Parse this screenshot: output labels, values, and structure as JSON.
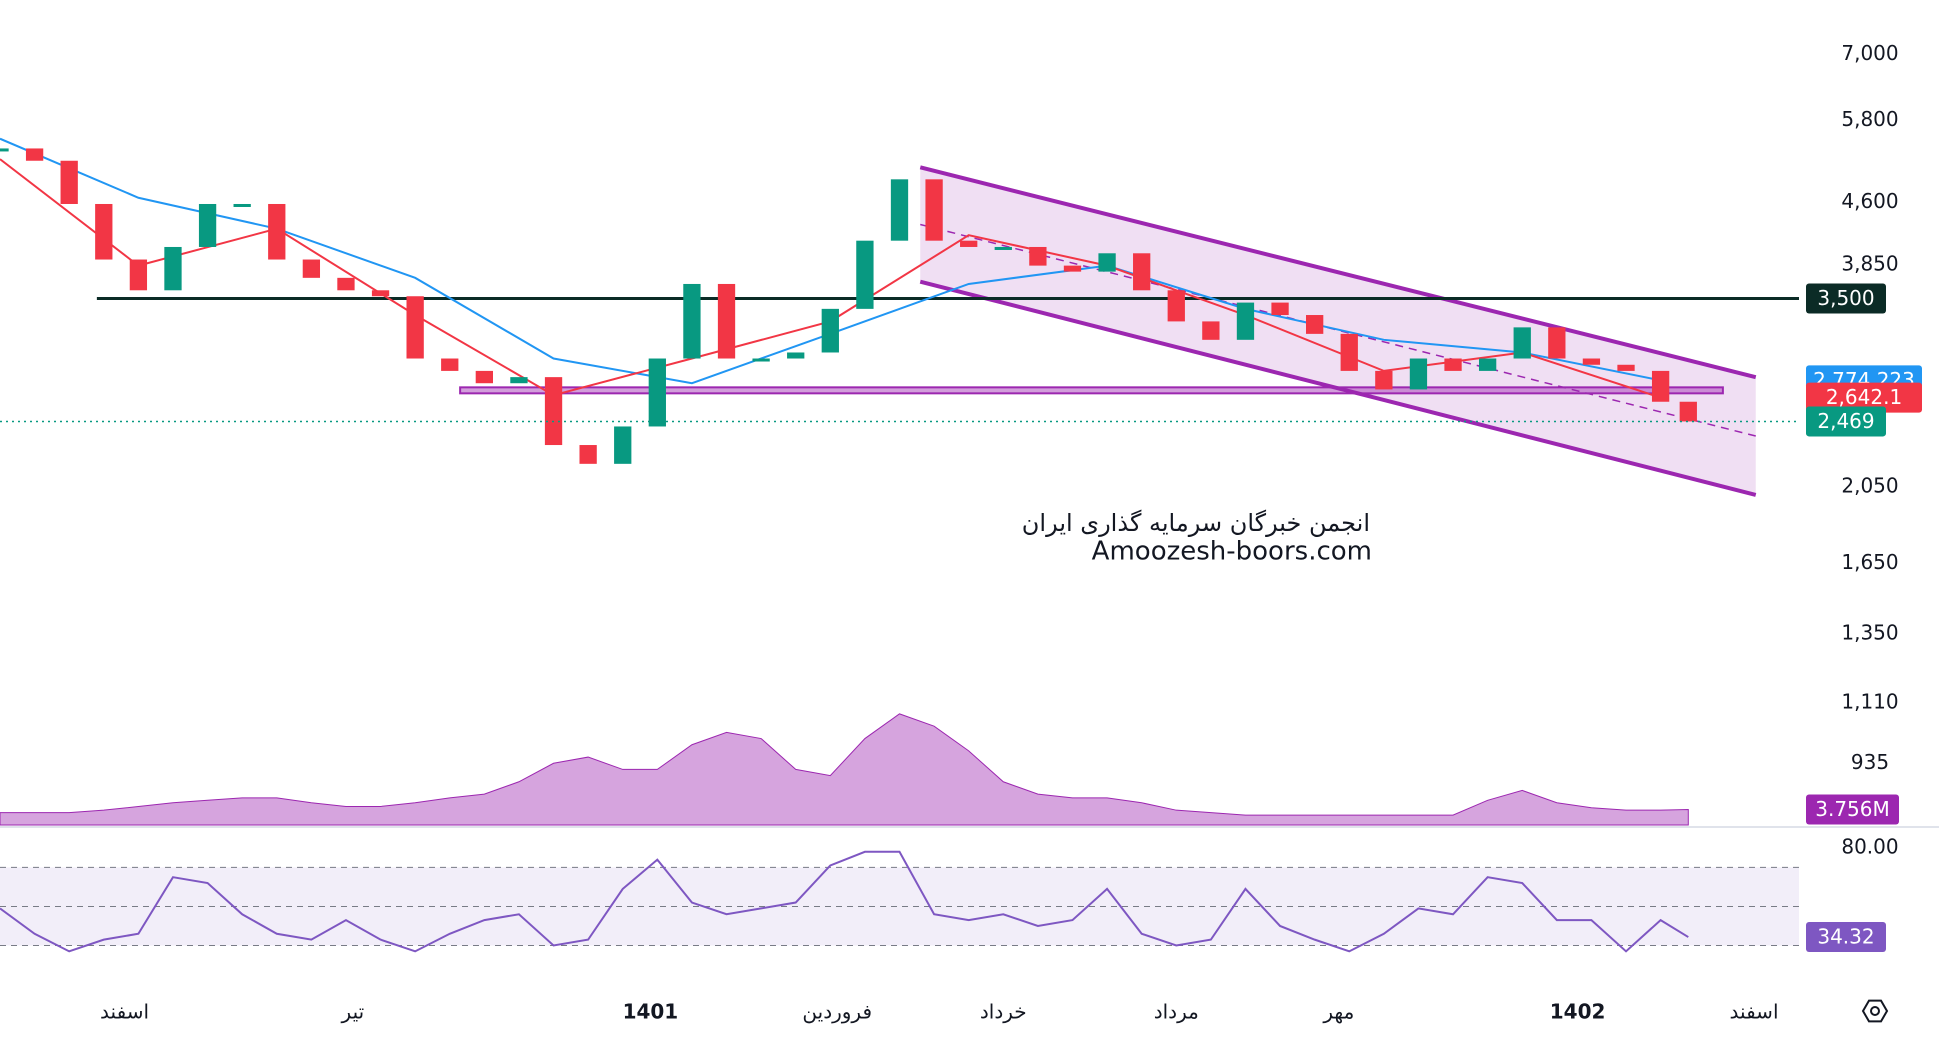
{
  "chart_data": {
    "type": "candlestick",
    "log_scale": true,
    "color_up": "#089981",
    "color_down": "#f23645",
    "xlim": [
      0,
      52
    ],
    "xticks": [
      {
        "value": 3.6,
        "label": "اسفند"
      },
      {
        "value": 10.2,
        "label": "تیر"
      },
      {
        "value": 18.8,
        "label": "1401"
      },
      {
        "value": 24.2,
        "label": "فروردین"
      },
      {
        "value": 29.0,
        "label": "خرداد"
      },
      {
        "value": 34.0,
        "label": "مرداد"
      },
      {
        "value": 38.7,
        "label": "مهر"
      },
      {
        "value": 45.6,
        "label": "1402"
      },
      {
        "value": 50.7,
        "label": "اسفند"
      }
    ],
    "ylim": [
      785,
      8170
    ],
    "yticks": [
      {
        "value": 7000,
        "label": "7,000"
      },
      {
        "value": 5800,
        "label": "5,800"
      },
      {
        "value": 4600,
        "label": "4,600"
      },
      {
        "value": 3850,
        "label": "3,850"
      },
      {
        "value": 2050,
        "label": "2,050"
      },
      {
        "value": 1650,
        "label": "1,650"
      },
      {
        "value": 1350,
        "label": "1,350"
      },
      {
        "value": 1110,
        "label": "1,110"
      },
      {
        "value": 935,
        "label": "935"
      }
    ],
    "x": [
      0,
      1,
      2,
      3,
      4,
      5,
      6,
      7,
      8,
      9,
      10,
      11,
      12,
      13,
      14,
      15,
      16,
      17,
      18,
      19,
      20,
      21,
      22,
      23,
      24,
      25,
      26,
      27,
      28,
      29,
      30,
      31,
      32,
      33,
      34,
      35,
      36,
      37,
      38,
      39,
      40,
      41,
      42,
      43,
      44,
      45,
      46,
      47,
      48,
      48.8
    ],
    "values": [
      5360,
      5176,
      4578,
      3910,
      3583,
      4052,
      4578,
      4578,
      3910,
      3712,
      3583,
      3523,
      2952,
      2850,
      2752,
      2800,
      2309,
      2189,
      2434,
      2952,
      3648,
      2952,
      2952,
      3003,
      3399,
      4125,
      4910,
      4125,
      4052,
      4052,
      3843,
      3778,
      3980,
      3583,
      3280,
      3113,
      3460,
      3340,
      3166,
      2850,
      2704,
      2952,
      2850,
      2952,
      3225,
      2952,
      2900,
      2850,
      2611,
      2469
    ],
    "last_label": "2,469",
    "ma": [
      {
        "color": "#2196f3",
        "x": [
          0,
          4,
          8,
          12,
          16,
          20,
          24,
          28,
          32,
          36,
          40,
          44,
          48
        ],
        "values": [
          5510,
          4660,
          4268,
          3712,
          2952,
          2752,
          3166,
          3648,
          3843,
          3399,
          3113,
          3003,
          2774.223
        ],
        "last_label": "2,774.223"
      },
      {
        "color": "#f23645",
        "x": [
          0,
          4,
          8,
          12,
          16,
          20,
          24,
          28,
          32,
          36,
          40,
          44,
          48
        ],
        "values": [
          5200,
          3843,
          4268,
          3340,
          2660,
          2952,
          3280,
          4190,
          3843,
          3340,
          2850,
          3003,
          2642.1
        ],
        "last_label": "2,642.1"
      }
    ],
    "levels": [
      {
        "value": 3500,
        "label": "3,500",
        "x_start": 2.8,
        "color": "#0b2b26"
      }
    ],
    "zone": {
      "x": [
        13.3,
        49.8
      ],
      "values": [
        2680,
        2720
      ],
      "color": "#9c27b0"
    },
    "channel": {
      "x": [
        26.6,
        50.75
      ],
      "upper": [
        5080,
        2800
      ],
      "lower": [
        3672,
        2004
      ],
      "color": "#9c27b0"
    },
    "volume": {
      "ylim": [
        0,
        60
      ],
      "color": "#ba68c8",
      "values": [
        3,
        3,
        3,
        3.6,
        4.5,
        5.4,
        6,
        6.6,
        6.6,
        5.4,
        4.5,
        4.5,
        5.4,
        6.6,
        7.5,
        10.5,
        15,
        16.5,
        13.5,
        13.5,
        19.5,
        22.5,
        21,
        13.5,
        12,
        21,
        27,
        24,
        18,
        10.5,
        7.5,
        6.6,
        6.6,
        5.4,
        3.6,
        3,
        2.4,
        2.4,
        2.4,
        2.4,
        2.4,
        2.4,
        2.4,
        6,
        8.4,
        5.4,
        4.2,
        3.6,
        3.6,
        3.756
      ],
      "last_label": "3.756M"
    },
    "rsi": {
      "color": "#7e57c2",
      "ylim": [
        7.7,
        90.2
      ],
      "yticks": [
        {
          "value": 80,
          "label": "80.00"
        }
      ],
      "levels": [
        70,
        50,
        30
      ],
      "values": [
        49,
        36,
        27,
        33,
        36,
        65,
        62,
        46,
        36,
        33,
        43,
        33,
        27,
        36,
        43,
        46,
        30,
        33,
        59,
        74,
        52,
        46,
        49,
        52,
        71,
        78,
        78,
        46,
        43,
        46,
        40,
        43,
        59,
        36,
        30,
        33,
        59,
        40,
        33,
        27,
        36,
        49,
        46,
        65,
        62,
        43,
        43,
        27,
        43,
        34.32
      ],
      "last_label": "34.32"
    },
    "watermark": [
      "انجمن خبرگان سرمایه گذاری ایران",
      "Amoozesh-boors.com"
    ]
  }
}
